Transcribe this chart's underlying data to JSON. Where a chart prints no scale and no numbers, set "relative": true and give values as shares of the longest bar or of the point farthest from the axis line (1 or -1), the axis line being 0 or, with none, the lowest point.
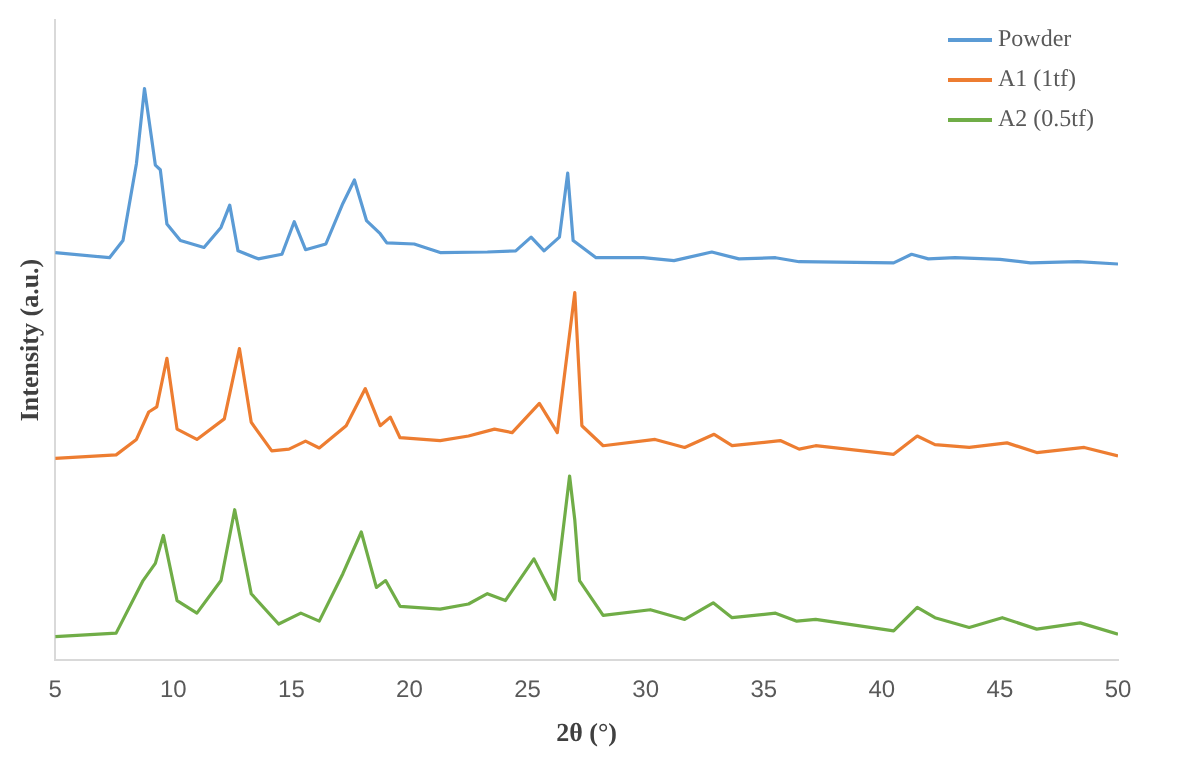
{
  "chart_data": {
    "type": "line",
    "xlabel": "2θ (°)",
    "ylabel": "Intensity (a.u.)",
    "relative": true,
    "xlim": [
      5,
      50
    ],
    "xticks": [
      5,
      10,
      15,
      20,
      25,
      30,
      35,
      40,
      45,
      50
    ],
    "legend": "top right",
    "grid": false,
    "marker": "none",
    "line_style": "solid",
    "series": [
      {
        "name": "Powder",
        "color": "#5b9bd5",
        "x": [
          5,
          7.3,
          7.87,
          8.44,
          8.78,
          9.07,
          9.24,
          9.45,
          9.73,
          10.3,
          11.3,
          12.02,
          12.39,
          12.74,
          13.6,
          14.6,
          15.12,
          15.6,
          16.46,
          17.18,
          17.67,
          18.18,
          18.76,
          19.04,
          20.2,
          21.3,
          23.3,
          24.5,
          25.15,
          25.7,
          26.35,
          26.7,
          26.93,
          27.9,
          29.9,
          31.2,
          32.8,
          33.95,
          35.5,
          36.5,
          40.5,
          41.26,
          41.97,
          43.1,
          45,
          46.3,
          48.3,
          50
        ],
        "values": [
          0.713,
          0.704,
          0.734,
          0.869,
          1,
          0.916,
          0.866,
          0.858,
          0.763,
          0.734,
          0.722,
          0.757,
          0.796,
          0.716,
          0.702,
          0.71,
          0.767,
          0.718,
          0.728,
          0.799,
          0.84,
          0.769,
          0.746,
          0.73,
          0.728,
          0.713,
          0.714,
          0.716,
          0.74,
          0.716,
          0.74,
          0.852,
          0.734,
          0.704,
          0.704,
          0.699,
          0.714,
          0.702,
          0.704,
          0.697,
          0.695,
          0.71,
          0.702,
          0.704,
          0.701,
          0.695,
          0.697,
          0.693
        ]
      },
      {
        "name": "A1 (1tf)",
        "color": "#ed7d31",
        "x": [
          5,
          7.58,
          8.44,
          8.96,
          9.3,
          9.73,
          10.16,
          11,
          12.16,
          12.8,
          13.3,
          14.17,
          14.9,
          15.6,
          16.18,
          17.32,
          18.13,
          18.76,
          19.19,
          19.6,
          21.3,
          22.5,
          23.6,
          24.35,
          25.5,
          26.26,
          27,
          27.3,
          28.2,
          30.4,
          31.65,
          32.9,
          33.66,
          35.7,
          36.5,
          37.2,
          40.5,
          41.5,
          42.25,
          43.7,
          45.3,
          46.56,
          48.57,
          50
        ],
        "values": [
          0.353,
          0.359,
          0.386,
          0.434,
          0.443,
          0.528,
          0.404,
          0.386,
          0.422,
          0.545,
          0.416,
          0.366,
          0.369,
          0.383,
          0.371,
          0.41,
          0.475,
          0.41,
          0.425,
          0.389,
          0.384,
          0.392,
          0.404,
          0.398,
          0.449,
          0.398,
          0.643,
          0.41,
          0.375,
          0.386,
          0.372,
          0.395,
          0.375,
          0.384,
          0.369,
          0.375,
          0.36,
          0.392,
          0.377,
          0.372,
          0.38,
          0.363,
          0.372,
          0.357
        ]
      },
      {
        "name": "A2 (0.5tf)",
        "color": "#70ad47",
        "x": [
          5,
          7.58,
          8.72,
          9.24,
          9.58,
          10.16,
          11,
          12.02,
          12.6,
          13.3,
          14.46,
          15.4,
          16.18,
          17.18,
          17.96,
          18.6,
          18.99,
          19.6,
          21.3,
          22.5,
          23.3,
          24.06,
          25.27,
          26.15,
          26.78,
          27,
          27.2,
          28.2,
          30.2,
          31.65,
          32.86,
          33.66,
          35.5,
          36.4,
          37.2,
          40.5,
          41.5,
          42.25,
          43.7,
          45.1,
          46.56,
          48.4,
          50
        ],
        "values": [
          0.041,
          0.047,
          0.139,
          0.169,
          0.218,
          0.104,
          0.082,
          0.139,
          0.263,
          0.116,
          0.063,
          0.082,
          0.068,
          0.151,
          0.224,
          0.127,
          0.139,
          0.094,
          0.089,
          0.098,
          0.116,
          0.104,
          0.177,
          0.106,
          0.322,
          0.245,
          0.139,
          0.078,
          0.088,
          0.071,
          0.1,
          0.074,
          0.082,
          0.068,
          0.071,
          0.051,
          0.092,
          0.074,
          0.057,
          0.074,
          0.054,
          0.065,
          0.045
        ]
      }
    ]
  }
}
